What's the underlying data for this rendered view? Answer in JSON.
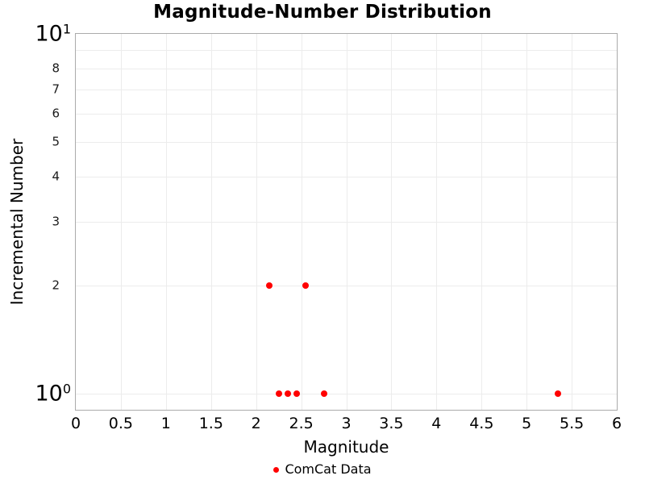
{
  "legend": {
    "items": [
      {
        "label": "ComCat Data",
        "color": "#ff0000",
        "marker": "circle"
      }
    ]
  },
  "chart_data": {
    "type": "scatter",
    "title": "Magnitude-Number Distribution",
    "xlabel": "Magnitude",
    "ylabel": "Incremental Number",
    "grid": true,
    "legend_position": "bottom-center",
    "x_axis": {
      "scale": "linear",
      "range": [
        0,
        6
      ],
      "tick_values": [
        0,
        0.5,
        1,
        1.5,
        2,
        2.5,
        3,
        3.5,
        4,
        4.5,
        5,
        5.5,
        6
      ],
      "tick_labels": [
        "0",
        "0.5",
        "1",
        "1.5",
        "2",
        "2.5",
        "3",
        "3.5",
        "4",
        "4.5",
        "5",
        "5.5",
        "6"
      ]
    },
    "y_axis": {
      "scale": "log",
      "range": [
        0.9,
        10
      ],
      "major_ticks": [
        {
          "value": 10,
          "mantissa": "10",
          "exponent": "1"
        },
        {
          "value": 1,
          "mantissa": "10",
          "exponent": "0"
        }
      ],
      "minor_tick_labels": [
        {
          "value": 8,
          "label": "8"
        },
        {
          "value": 7,
          "label": "7"
        },
        {
          "value": 6,
          "label": "6"
        },
        {
          "value": 5,
          "label": "5"
        },
        {
          "value": 4,
          "label": "4"
        },
        {
          "value": 3,
          "label": "3"
        },
        {
          "value": 2,
          "label": "2"
        }
      ],
      "gridline_values": [
        1,
        2,
        3,
        4,
        5,
        6,
        7,
        8,
        9,
        10
      ]
    },
    "series": [
      {
        "name": "ComCat Data",
        "color": "#ff0000",
        "marker": "circle",
        "x": [
          2.15,
          2.25,
          2.35,
          2.45,
          2.55,
          2.75,
          5.35
        ],
        "y": [
          2,
          1,
          1,
          1,
          2,
          1,
          1
        ]
      }
    ]
  }
}
